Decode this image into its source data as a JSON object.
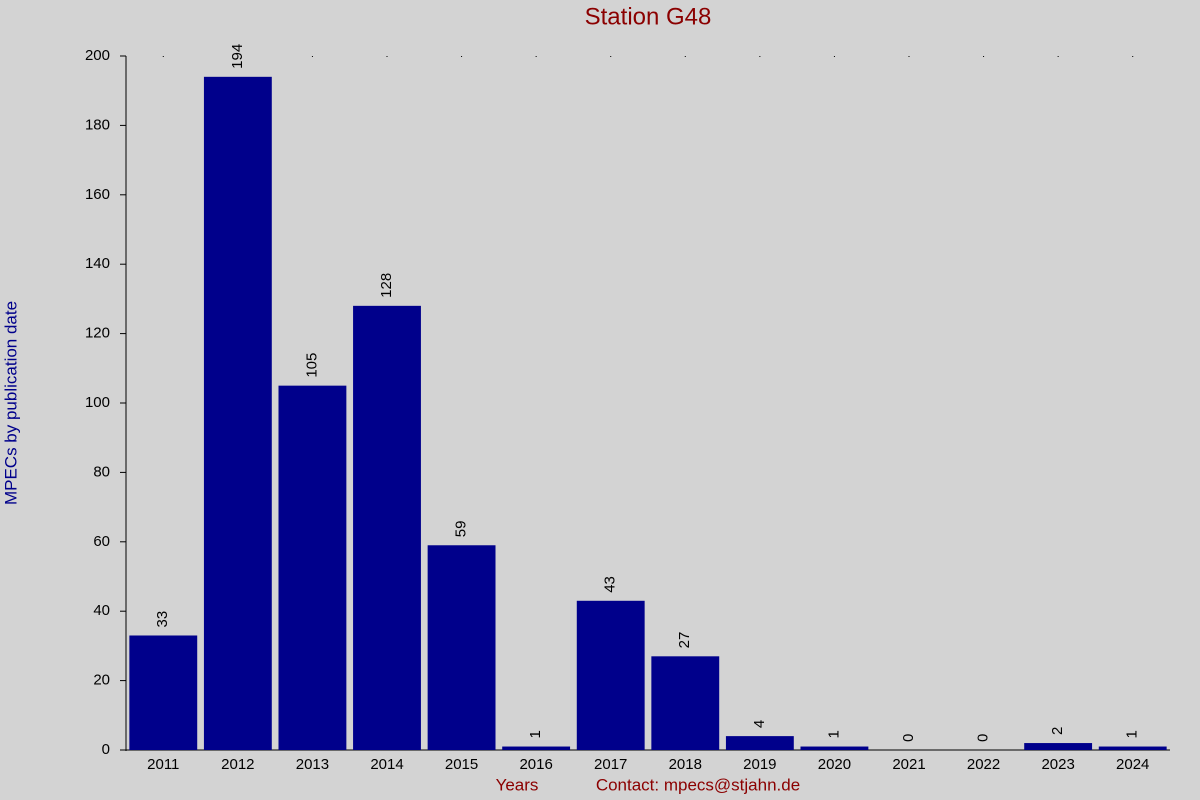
{
  "chart_data": {
    "type": "bar",
    "title": "Station G48",
    "x_label": "Years",
    "contact": "Contact: mpecs@stjahn.de",
    "y_label": "MPECs by publication date",
    "categories": [
      "2011",
      "2012",
      "2013",
      "2014",
      "2015",
      "2016",
      "2017",
      "2018",
      "2019",
      "2020",
      "2021",
      "2022",
      "2023",
      "2024"
    ],
    "values": [
      33,
      194,
      105,
      128,
      59,
      1,
      43,
      27,
      4,
      1,
      0,
      0,
      2,
      1
    ],
    "color": "#00008b",
    "ylim": [
      0,
      200
    ],
    "yticks": [
      0,
      20,
      40,
      60,
      80,
      100,
      120,
      140,
      160,
      180,
      200
    ],
    "grid": false
  }
}
